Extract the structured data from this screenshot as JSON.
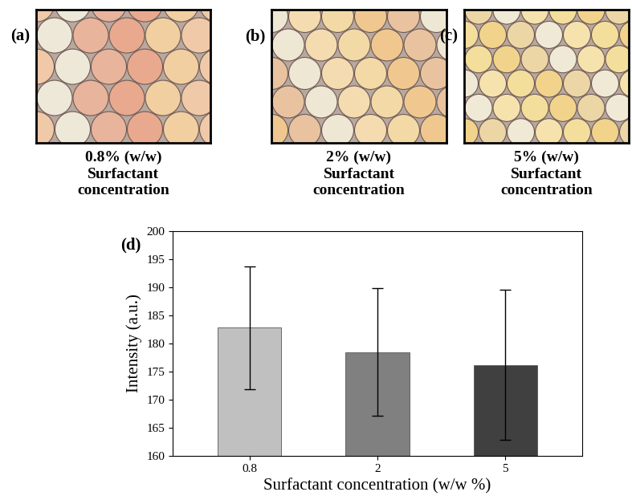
{
  "panels": [
    {
      "label": "(a)",
      "caption": [
        "0.8% (w/w)",
        "Surfactant",
        "concentration"
      ]
    },
    {
      "label": "(b)",
      "caption": [
        "2% (w/w)",
        "Surfactant",
        "concentration"
      ]
    },
    {
      "label": "(c)",
      "caption": [
        "5% (w/w)",
        "Surfactant",
        "concentration"
      ]
    }
  ],
  "chart_data": {
    "type": "bar",
    "panel_label": "(d)",
    "x_label": "Surfactant concentration (w/w %)",
    "y_label": "Intensity (a.u.)",
    "categories": [
      "0.8",
      "2",
      "5"
    ],
    "values": [
      182.8,
      178.5,
      176.2
    ],
    "errors": [
      10.9,
      11.4,
      13.4
    ],
    "colors": [
      "#c0c0c0",
      "#808080",
      "#404040"
    ],
    "ylim": [
      160,
      200
    ],
    "yticks": [
      160,
      165,
      170,
      175,
      180,
      185,
      190,
      195,
      200
    ],
    "grid": false
  }
}
